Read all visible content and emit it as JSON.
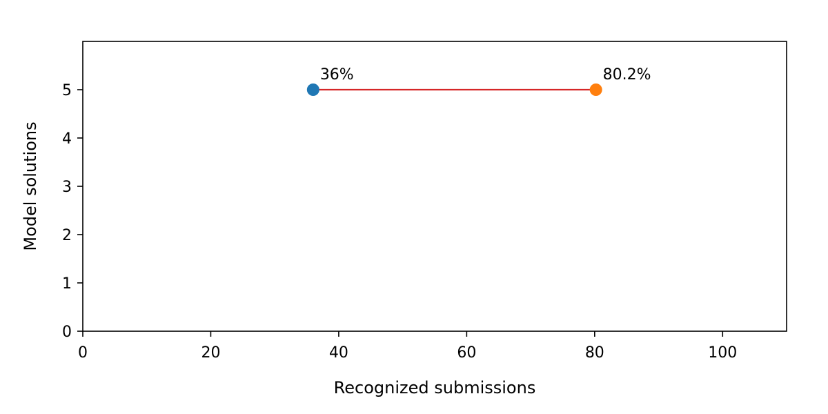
{
  "chart_data": {
    "type": "scatter",
    "xlabel": "Recognized submissions",
    "ylabel": "Model solutions",
    "xlim": [
      0,
      110
    ],
    "ylim": [
      0,
      6
    ],
    "x_ticks": [
      0,
      20,
      40,
      60,
      80,
      100
    ],
    "y_ticks": [
      0,
      1,
      2,
      3,
      4,
      5
    ],
    "grid": false,
    "connector": {
      "from": 36,
      "to": 80.2,
      "y": 5,
      "color": "#d62728"
    },
    "points": [
      {
        "x": 36,
        "y": 5,
        "label": "36%",
        "color": "#1f77b4"
      },
      {
        "x": 80.2,
        "y": 5,
        "label": "80.2%",
        "color": "#ff7f0e"
      }
    ]
  }
}
